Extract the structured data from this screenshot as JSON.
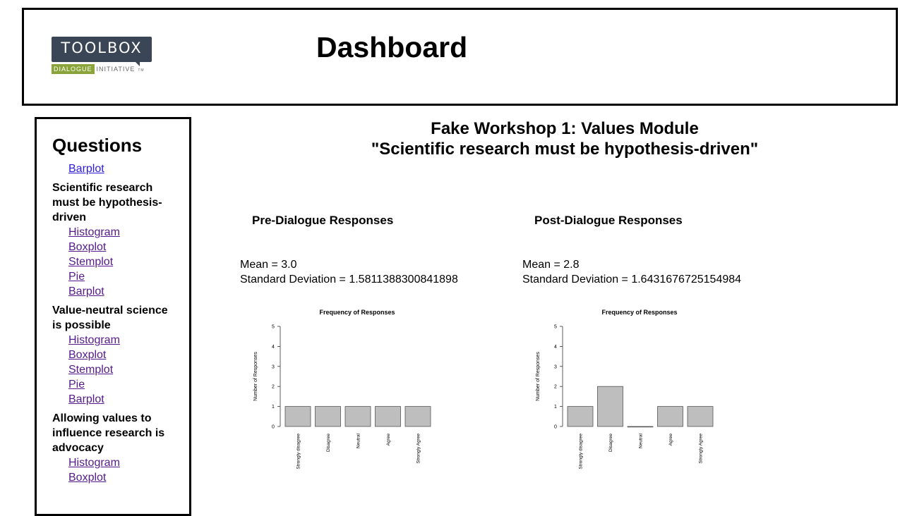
{
  "header": {
    "logo": {
      "top_text": "TOOLBOX",
      "badge_text": "DIALOGUE",
      "tail_text": "INITIATIVE",
      "tm": "TM"
    },
    "title": "Dashboard"
  },
  "sidebar": {
    "heading": "Questions",
    "first_link": "Barplot",
    "questions": [
      {
        "title": "Scientific research must be hypothesis-driven",
        "links": [
          "Histogram",
          "Boxplot",
          "Stemplot",
          "Pie",
          "Barplot"
        ]
      },
      {
        "title": "Value-neutral science is possible",
        "links": [
          "Histogram",
          "Boxplot",
          "Stemplot",
          "Pie",
          "Barplot"
        ]
      },
      {
        "title": "Allowing values to influence research is advocacy",
        "links": [
          "Histogram",
          "Boxplot"
        ]
      }
    ]
  },
  "main": {
    "title_line1": "Fake Workshop 1: Values Module",
    "title_line2": "\"Scientific research must be hypothesis-driven\"",
    "pre": {
      "heading": "Pre-Dialogue Responses",
      "mean": "Mean = 3.0",
      "sd": "Standard Deviation = 1.5811388300841898"
    },
    "post": {
      "heading": "Post-Dialogue Responses",
      "mean": "Mean = 2.8",
      "sd": "Standard Deviation = 1.6431676725154984"
    }
  },
  "chart_data": [
    {
      "type": "bar",
      "title": "Frequency of Responses",
      "xlabel": "",
      "ylabel": "Number of Responses",
      "categories": [
        "Strongly disagree",
        "Disagree",
        "Neutral",
        "Agree",
        "Strongly Agree"
      ],
      "values": [
        1,
        1,
        1,
        1,
        1
      ],
      "ylim": [
        0,
        5
      ],
      "yticks": [
        0,
        1,
        2,
        3,
        4,
        5
      ],
      "grid": false,
      "bar_color": "#bebebe"
    },
    {
      "type": "bar",
      "title": "Frequency of Responses",
      "xlabel": "",
      "ylabel": "Number of Responses",
      "categories": [
        "Strongly disagree",
        "Disagree",
        "Neutral",
        "Agree",
        "Strongly Agree"
      ],
      "values": [
        1,
        2,
        0,
        1,
        1
      ],
      "ylim": [
        0,
        5
      ],
      "yticks": [
        0,
        1,
        2,
        3,
        4,
        5
      ],
      "grid": false,
      "bar_color": "#bebebe"
    }
  ]
}
